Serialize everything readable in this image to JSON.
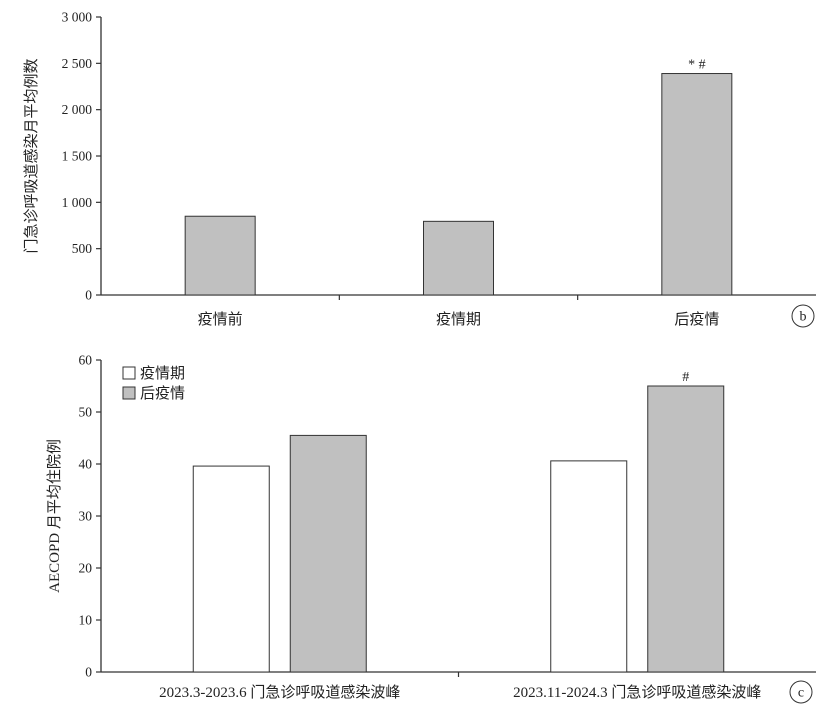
{
  "chart_data": [
    {
      "type": "bar",
      "panel_label": "b",
      "categories": [
        "疫情前",
        "疫情期",
        "后疫情"
      ],
      "values": [
        850,
        795,
        2390
      ],
      "annotations": [
        "",
        "",
        "* #"
      ],
      "ylabel": "门急诊呼吸道感染月平均例数",
      "ylim": [
        0,
        3000
      ],
      "yticks": [
        0,
        500,
        1000,
        1500,
        2000,
        2500,
        3000
      ],
      "ytick_labels": [
        "0",
        "500",
        "1 000",
        "1 500",
        "2 000",
        "2 500",
        "3 000"
      ],
      "bar_color": "#c0c0c0",
      "grid": false
    },
    {
      "type": "bar",
      "panel_label": "c",
      "categories": [
        "2023.3-2023.6 门急诊呼吸道感染波峰",
        "2023.11-2024.3 门急诊呼吸道感染波峰"
      ],
      "series": [
        {
          "name": "疫情期",
          "values": [
            39.6,
            40.6
          ],
          "color": "#ffffff",
          "annotations": [
            "",
            ""
          ]
        },
        {
          "name": "后疫情",
          "values": [
            45.5,
            55.0
          ],
          "color": "#c0c0c0",
          "annotations": [
            "",
            "#"
          ]
        }
      ],
      "ylabel": "AECOPD 月平均住院例",
      "ylim": [
        0,
        60
      ],
      "yticks": [
        0,
        10,
        20,
        30,
        40,
        50,
        60
      ],
      "ytick_labels": [
        "0",
        "10",
        "20",
        "30",
        "40",
        "50",
        "60"
      ],
      "legend_position": "top-left",
      "grid": false
    }
  ]
}
